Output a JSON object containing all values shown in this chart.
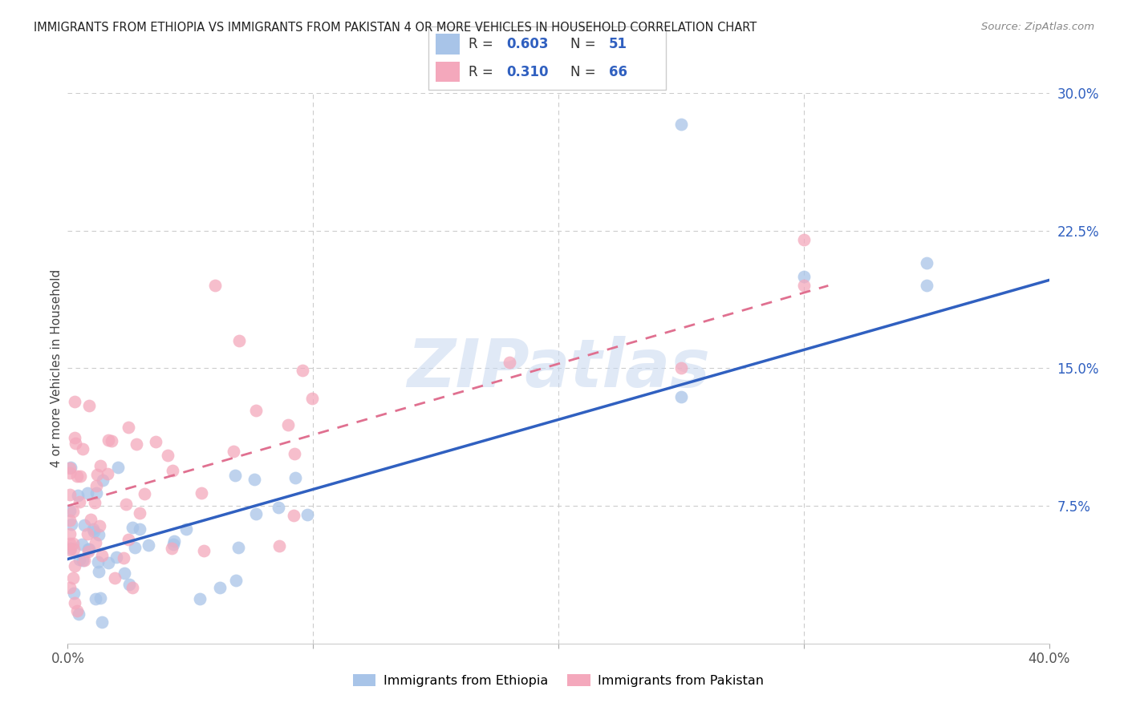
{
  "title": "IMMIGRANTS FROM ETHIOPIA VS IMMIGRANTS FROM PAKISTAN 4 OR MORE VEHICLES IN HOUSEHOLD CORRELATION CHART",
  "source": "Source: ZipAtlas.com",
  "ylabel": "4 or more Vehicles in Household",
  "xlim": [
    0.0,
    0.4
  ],
  "ylim": [
    0.0,
    0.3
  ],
  "xtick_vals": [
    0.0,
    0.1,
    0.2,
    0.3,
    0.4
  ],
  "xtick_labels": [
    "0.0%",
    "",
    "",
    "",
    "40.0%"
  ],
  "ytick_vals": [
    0.075,
    0.15,
    0.225,
    0.3
  ],
  "ytick_labels": [
    "7.5%",
    "15.0%",
    "22.5%",
    "30.0%"
  ],
  "blue_color": "#a8c4e8",
  "pink_color": "#f4a8bc",
  "blue_line_color": "#3060c0",
  "pink_line_color": "#e07090",
  "watermark": "ZIPatlas",
  "legend_r1": "0.603",
  "legend_n1": "51",
  "legend_r2": "0.310",
  "legend_n2": "66",
  "eth_line_x0": 0.0,
  "eth_line_x1": 0.4,
  "eth_line_y0": 0.046,
  "eth_line_y1": 0.198,
  "pak_line_x0": 0.0,
  "pak_line_x1": 0.31,
  "pak_line_y0": 0.075,
  "pak_line_y1": 0.195
}
